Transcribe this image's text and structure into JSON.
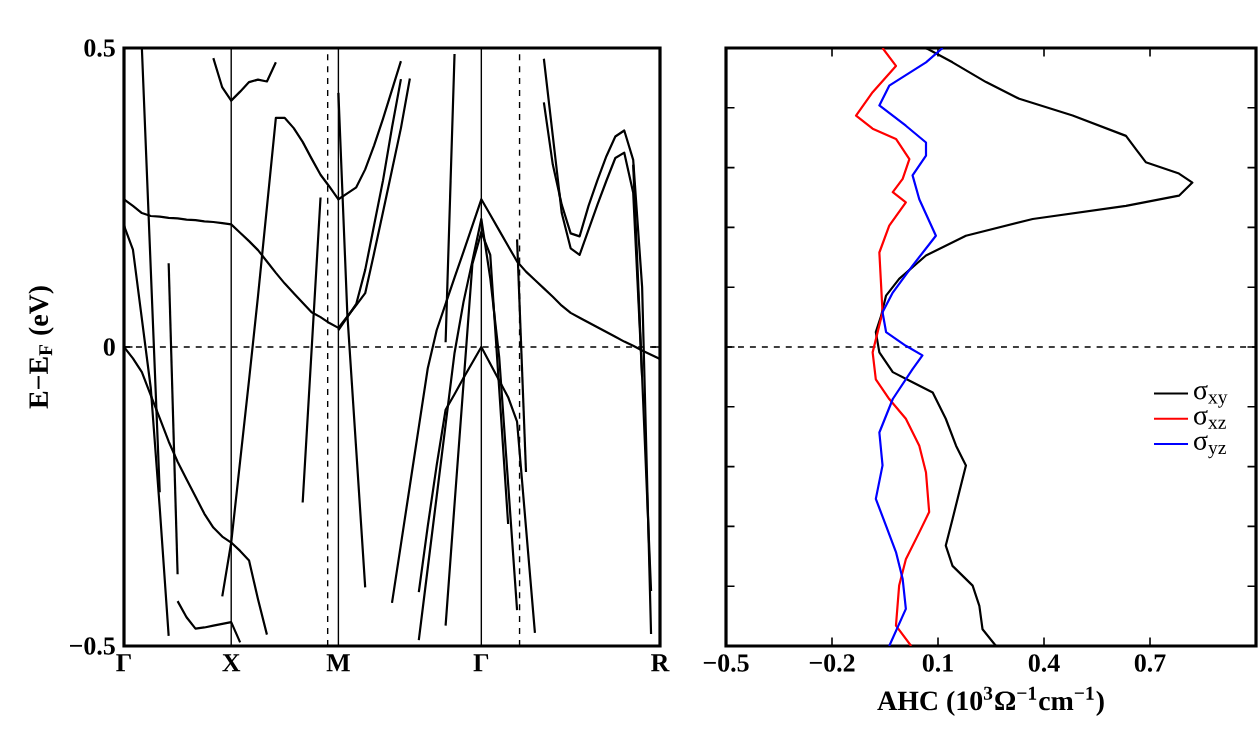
{
  "chart_data": [
    {
      "type": "line",
      "ylabel": "E−E$_{F}$ (eV)",
      "ylim": [
        -0.5,
        0.5
      ],
      "categories": [
        "Γ",
        null,
        null,
        null,
        null,
        null,
        null,
        null,
        null,
        null,
        null,
        null,
        "X",
        null,
        null,
        null,
        null,
        null,
        null,
        null,
        null,
        null,
        null,
        null,
        "M",
        null,
        null,
        null,
        null,
        null,
        null,
        null,
        null,
        null,
        null,
        null,
        null,
        null,
        null,
        null,
        "Γ",
        null,
        null,
        null,
        null,
        null,
        null,
        null,
        null,
        null,
        null,
        null,
        null,
        null,
        null,
        null,
        null,
        null,
        null,
        null,
        "R"
      ],
      "yticks": [
        0.5,
        0,
        {
          "value": -0.5,
          "label": "−0.5"
        }
      ],
      "grid": "x",
      "ref_lines": [
        {
          "axis": "y",
          "value": 0,
          "line_style": "dashed"
        }
      ],
      "series": [
        {
          "color": "#000000",
          "values": [
            0.247,
            0.236,
            0.224,
            0.219,
            0.218,
            0.216,
            0.215,
            0.213,
            0.212,
            0.21,
            0.209,
            0.207,
            0.205,
            0.191,
            0.177,
            0.162,
            0.143,
            0.124,
            0.106,
            0.09,
            0.074,
            0.058,
            0.05,
            0.04,
            0.032,
            0.051,
            0.07,
            0.09,
            0.157,
            0.226,
            0.296,
            0.366,
            0.449,
            null,
            null,
            null,
            null,
            null,
            null,
            null,
            null,
            null,
            null,
            null,
            null,
            null,
            null,
            null,
            null,
            null,
            null,
            null,
            null,
            null,
            null,
            null,
            null,
            null,
            null,
            null,
            null
          ]
        },
        {
          "color": "#000000",
          "values": [
            null,
            null,
            null,
            null,
            null,
            null,
            null,
            null,
            null,
            null,
            null,
            null,
            null,
            null,
            null,
            null,
            null,
            null,
            null,
            null,
            null,
            null,
            null,
            null,
            0.028,
            0.05,
            0.072,
            0.129,
            0.204,
            0.279,
            0.367,
            0.448,
            null,
            null,
            null,
            null,
            null,
            null,
            null,
            null,
            null,
            null,
            null,
            null,
            null,
            null,
            null,
            null,
            null,
            null,
            null,
            null,
            null,
            null,
            null,
            null,
            null,
            null,
            null,
            null,
            null
          ]
        },
        {
          "color": "#000000",
          "values": [
            null,
            null,
            null,
            null,
            null,
            null,
            null,
            null,
            null,
            null,
            null,
            -0.417,
            -0.327,
            -0.191,
            -0.055,
            0.085,
            0.234,
            0.383,
            0.383,
            0.366,
            0.343,
            0.315,
            0.288,
            0.268,
            0.247,
            0.257,
            0.267,
            0.297,
            0.337,
            0.382,
            0.43,
            0.478,
            null,
            null,
            null,
            null,
            null,
            null,
            null,
            null,
            null,
            null,
            null,
            null,
            null,
            null,
            null,
            null,
            null,
            null,
            null,
            null,
            null,
            null,
            null,
            null,
            null,
            null,
            null,
            null,
            null
          ]
        },
        {
          "color": "#000000",
          "values": [
            null,
            null,
            null,
            null,
            null,
            null,
            null,
            null,
            null,
            null,
            0.483,
            0.434,
            0.412,
            0.427,
            0.443,
            0.447,
            0.444,
            0.476,
            null,
            null,
            null,
            null,
            null,
            null,
            null,
            null,
            null,
            null,
            null,
            null,
            null,
            null,
            null,
            null,
            null,
            null,
            null,
            null,
            null,
            null,
            null,
            null,
            null,
            null,
            null,
            null,
            null,
            null,
            null,
            null,
            null,
            null,
            null,
            null,
            null,
            null,
            null,
            null,
            null,
            null,
            null
          ]
        },
        {
          "color": "#000000",
          "values": [
            null,
            null,
            null,
            null,
            null,
            0.14,
            -0.38,
            null,
            null,
            null,
            null,
            null,
            null,
            null,
            null,
            null,
            null,
            null,
            null,
            null,
            null,
            null,
            null,
            null,
            null,
            null,
            null,
            null,
            null,
            null,
            null,
            null,
            null,
            null,
            null,
            null,
            null,
            null,
            null,
            null,
            null,
            null,
            null,
            null,
            null,
            null,
            null,
            null,
            null,
            null,
            null,
            null,
            null,
            null,
            null,
            null,
            null,
            null,
            null,
            null,
            null
          ]
        },
        {
          "color": "#000000",
          "values": [
            null,
            null,
            0.5,
            0.129,
            -0.243,
            null,
            null,
            null,
            null,
            null,
            null,
            null,
            null,
            null,
            null,
            null,
            null,
            null,
            null,
            null,
            null,
            null,
            null,
            null,
            null,
            null,
            null,
            null,
            null,
            null,
            null,
            null,
            null,
            null,
            null,
            null,
            null,
            null,
            null,
            null,
            null,
            null,
            null,
            null,
            null,
            null,
            null,
            null,
            null,
            null,
            null,
            null,
            null,
            null,
            null,
            null,
            null,
            null,
            null,
            null,
            null
          ]
        },
        {
          "color": "#000000",
          "values": [
            0.203,
            0.163,
            0.047,
            -0.069,
            -0.269,
            -0.483,
            null,
            null,
            null,
            null,
            null,
            null,
            null,
            null,
            null,
            null,
            null,
            null,
            null,
            null,
            null,
            null,
            null,
            null,
            null,
            null,
            null,
            null,
            null,
            null,
            null,
            null,
            null,
            null,
            null,
            null,
            null,
            null,
            null,
            null,
            null,
            null,
            null,
            null,
            null,
            null,
            null,
            null,
            null,
            null,
            null,
            null,
            null,
            null,
            null,
            null,
            null,
            null,
            null,
            null,
            null
          ]
        },
        {
          "color": "#000000",
          "values": [
            0,
            -0.019,
            -0.042,
            -0.081,
            -0.119,
            -0.158,
            -0.192,
            -0.221,
            -0.25,
            -0.279,
            -0.302,
            -0.317,
            -0.327,
            -0.341,
            -0.357,
            -0.422,
            -0.481,
            null,
            null,
            null,
            null,
            null,
            null,
            null,
            null,
            null,
            null,
            null,
            null,
            null,
            null,
            null,
            null,
            null,
            null,
            null,
            null,
            null,
            null,
            null,
            null,
            null,
            null,
            null,
            null,
            null,
            null,
            null,
            null,
            null,
            null,
            null,
            null,
            null,
            null,
            null,
            null,
            null,
            null,
            null,
            null
          ]
        },
        {
          "color": "#000000",
          "values": [
            null,
            null,
            null,
            null,
            null,
            null,
            -0.425,
            -0.452,
            -0.471,
            -0.469,
            -0.466,
            -0.463,
            -0.46,
            -0.494,
            null,
            null,
            null,
            null,
            null,
            null,
            null,
            null,
            null,
            null,
            null,
            null,
            null,
            null,
            null,
            null,
            null,
            null,
            null,
            null,
            null,
            null,
            null,
            null,
            null,
            null,
            null,
            null,
            null,
            null,
            null,
            null,
            null,
            null,
            null,
            null,
            null,
            null,
            null,
            null,
            null,
            null,
            null,
            null,
            null,
            null,
            null
          ]
        },
        {
          "color": "#000000",
          "values": [
            null,
            null,
            null,
            null,
            null,
            null,
            null,
            null,
            null,
            null,
            null,
            null,
            null,
            null,
            null,
            null,
            null,
            null,
            null,
            null,
            -0.26,
            -0.005,
            0.25,
            null,
            null,
            null,
            null,
            null,
            null,
            null,
            null,
            null,
            null,
            null,
            null,
            null,
            null,
            null,
            null,
            null,
            null,
            null,
            null,
            null,
            null,
            null,
            null,
            null,
            null,
            null,
            null,
            null,
            null,
            null,
            null,
            null,
            null,
            null,
            null,
            null,
            null
          ]
        },
        {
          "color": "#000000",
          "values": [
            null,
            null,
            null,
            null,
            null,
            null,
            null,
            null,
            null,
            null,
            null,
            null,
            null,
            null,
            null,
            null,
            null,
            null,
            null,
            null,
            null,
            null,
            null,
            null,
            0.425,
            0.055,
            -0.173,
            -0.402,
            null,
            null,
            null,
            null,
            null,
            null,
            null,
            null,
            null,
            null,
            null,
            null,
            null,
            null,
            null,
            null,
            null,
            null,
            null,
            null,
            null,
            null,
            null,
            null,
            null,
            null,
            null,
            null,
            null,
            null,
            null,
            null,
            null
          ]
        },
        {
          "color": "#000000",
          "values": [
            null,
            null,
            null,
            null,
            null,
            null,
            null,
            null,
            null,
            null,
            null,
            null,
            null,
            null,
            null,
            null,
            null,
            null,
            null,
            null,
            null,
            null,
            null,
            null,
            null,
            null,
            null,
            null,
            null,
            null,
            -0.428,
            -0.33,
            -0.232,
            -0.134,
            -0.036,
            0.028,
            0.072,
            0.116,
            0.159,
            0.203,
            0.247,
            0.221,
            0.195,
            0.169,
            0.143,
            0.126,
            0.112,
            0.098,
            0.084,
            0.069,
            0.057,
            0.049,
            0.041,
            0.033,
            0.025,
            0.017,
            0.009,
            0.002,
            -0.006,
            -0.013,
            -0.02
          ]
        },
        {
          "color": "#000000",
          "values": [
            null,
            null,
            null,
            null,
            null,
            null,
            null,
            null,
            null,
            null,
            null,
            null,
            null,
            null,
            null,
            null,
            null,
            null,
            null,
            null,
            null,
            null,
            null,
            null,
            null,
            null,
            null,
            null,
            null,
            null,
            null,
            null,
            null,
            -0.49,
            -0.37,
            -0.25,
            -0.13,
            -0.01,
            0.075,
            0.144,
            0.214,
            0.115,
            -0.017,
            -0.229,
            -0.44,
            null,
            null,
            null,
            null,
            null,
            null,
            null,
            null,
            null,
            null,
            null,
            null,
            null,
            null,
            null,
            null
          ]
        },
        {
          "color": "#000000",
          "values": [
            null,
            null,
            null,
            null,
            null,
            null,
            null,
            null,
            null,
            null,
            null,
            null,
            null,
            null,
            null,
            null,
            null,
            null,
            null,
            null,
            null,
            null,
            null,
            null,
            null,
            null,
            null,
            null,
            null,
            null,
            null,
            null,
            null,
            null,
            null,
            null,
            -0.466,
            -0.263,
            -0.062,
            0.139,
            0.192,
            0.154,
            -0.07,
            -0.296,
            null,
            null,
            null,
            null,
            null,
            null,
            null,
            null,
            null,
            null,
            null,
            null,
            null,
            null,
            null,
            null,
            null
          ]
        },
        {
          "color": "#000000",
          "values": [
            null,
            null,
            null,
            null,
            null,
            null,
            null,
            null,
            null,
            null,
            null,
            null,
            null,
            null,
            null,
            null,
            null,
            null,
            null,
            null,
            null,
            null,
            null,
            null,
            null,
            null,
            null,
            null,
            null,
            null,
            null,
            null,
            null,
            -0.41,
            -0.3,
            -0.198,
            -0.105,
            -0.079,
            -0.052,
            -0.026,
            0,
            -0.028,
            -0.056,
            -0.084,
            -0.125,
            -0.302,
            -0.478,
            null,
            null,
            null,
            null,
            null,
            null,
            null,
            null,
            null,
            null,
            null,
            null,
            null,
            null
          ]
        },
        {
          "color": "#000000",
          "values": [
            null,
            null,
            null,
            null,
            null,
            null,
            null,
            null,
            null,
            null,
            null,
            null,
            null,
            null,
            null,
            null,
            null,
            null,
            null,
            null,
            null,
            null,
            null,
            null,
            null,
            null,
            null,
            null,
            null,
            null,
            null,
            null,
            null,
            null,
            null,
            null,
            0.008,
            0.49,
            null,
            null,
            null,
            null,
            null,
            null,
            null,
            null,
            null,
            null,
            null,
            null,
            null,
            null,
            null,
            null,
            null,
            null,
            null,
            null,
            null,
            null,
            null
          ]
        },
        {
          "color": "#000000",
          "values": [
            null,
            null,
            null,
            null,
            null,
            null,
            null,
            null,
            null,
            null,
            null,
            null,
            null,
            null,
            null,
            null,
            null,
            null,
            null,
            null,
            null,
            null,
            null,
            null,
            null,
            null,
            null,
            null,
            null,
            null,
            null,
            null,
            null,
            null,
            null,
            null,
            null,
            null,
            null,
            null,
            null,
            null,
            null,
            null,
            0.18,
            -0.209,
            null,
            null,
            null,
            null,
            null,
            null,
            null,
            null,
            null,
            null,
            null,
            null,
            null,
            null,
            null
          ]
        },
        {
          "color": "#000000",
          "values": [
            null,
            null,
            null,
            null,
            null,
            null,
            null,
            null,
            null,
            null,
            null,
            null,
            null,
            null,
            null,
            null,
            null,
            null,
            null,
            null,
            null,
            null,
            null,
            null,
            null,
            null,
            null,
            null,
            null,
            null,
            null,
            null,
            null,
            null,
            null,
            null,
            null,
            null,
            null,
            null,
            null,
            null,
            null,
            null,
            null,
            null,
            null,
            0.409,
            0.305,
            0.238,
            0.19,
            0.185,
            0.236,
            0.279,
            0.319,
            0.352,
            0.362,
            0.313,
            0.1,
            -0.48,
            null
          ]
        },
        {
          "color": "#000000",
          "values": [
            null,
            null,
            null,
            null,
            null,
            null,
            null,
            null,
            null,
            null,
            null,
            null,
            null,
            null,
            null,
            null,
            null,
            null,
            null,
            null,
            null,
            null,
            null,
            null,
            null,
            null,
            null,
            null,
            null,
            null,
            null,
            null,
            null,
            null,
            null,
            null,
            null,
            null,
            null,
            null,
            null,
            null,
            null,
            null,
            null,
            null,
            null,
            0.482,
            0.353,
            0.224,
            0.165,
            0.154,
            0.196,
            0.238,
            0.278,
            0.316,
            0.325,
            0.258,
            -0.05,
            null,
            null
          ]
        },
        {
          "color": "#000000",
          "values": [
            null,
            null,
            null,
            null,
            null,
            null,
            null,
            null,
            null,
            null,
            null,
            null,
            null,
            null,
            null,
            null,
            null,
            null,
            null,
            null,
            null,
            null,
            null,
            null,
            null,
            null,
            null,
            null,
            null,
            null,
            null,
            null,
            null,
            null,
            null,
            null,
            null,
            null,
            null,
            null,
            null,
            null,
            null,
            null,
            null,
            null,
            null,
            null,
            null,
            null,
            null,
            null,
            null,
            null,
            null,
            null,
            null,
            0.305,
            -0.05,
            -0.408,
            null
          ]
        }
      ]
    },
    {
      "type": "line",
      "xlabel": "AHC (10$^{3}$Ω$^{−1}$cm$^{−1}$)",
      "xlim": [
        -0.5,
        1.0
      ],
      "ylim": [
        -0.5,
        0.5
      ],
      "tick_labels": "x",
      "legend": "right",
      "xticks": [
        {
          "value": -0.5,
          "label": "−0.5"
        },
        {
          "value": -0.2,
          "label": "−0.2"
        },
        0.1,
        0.4,
        0.7,
        {
          "value": 1.0,
          "label": null
        }
      ],
      "ref_lines": [
        {
          "axis": "y",
          "value": 0,
          "line_style": "dashed"
        }
      ],
      "series": [
        {
          "name": "σ$_{xy}$",
          "color": "#000000",
          "x": [
            0.066,
            0.141,
            0.236,
            0.33,
            0.481,
            0.632,
            0.66,
            0.688,
            0.782,
            0.82,
            0.782,
            0.632,
            0.368,
            0.179,
            0.066,
            -0.01,
            -0.047,
            -0.061,
            -0.076,
            -0.066,
            -0.028,
            0.028,
            0.085,
            0.122,
            0.151,
            0.179,
            0.16,
            0.141,
            0.122,
            0.141,
            0.198,
            0.217,
            0.226,
            0.264
          ],
          "values": [
            0.5,
            0.476,
            0.443,
            0.415,
            0.387,
            0.353,
            0.331,
            0.309,
            0.29,
            0.275,
            0.253,
            0.236,
            0.214,
            0.186,
            0.153,
            0.114,
            0.086,
            0.052,
            0.025,
            -0.009,
            -0.042,
            -0.059,
            -0.076,
            -0.12,
            -0.165,
            -0.198,
            -0.243,
            -0.288,
            -0.332,
            -0.366,
            -0.399,
            -0.433,
            -0.472,
            -0.5
          ]
        },
        {
          "name": "σ$_{xz}$",
          "color": "#ff0000",
          "x": [
            -0.057,
            -0.019,
            -0.085,
            -0.132,
            -0.085,
            -0.019,
            0.019,
            0.0,
            -0.028,
            0.009,
            -0.038,
            -0.066,
            -0.062,
            -0.057,
            -0.085,
            -0.076,
            -0.038,
            0.009,
            0.047,
            0.066,
            0.075,
            0.047,
            0.009,
            -0.01,
            -0.019,
            0.024
          ],
          "values": [
            0.5,
            0.47,
            0.426,
            0.387,
            0.365,
            0.348,
            0.314,
            0.281,
            0.259,
            0.242,
            0.203,
            0.158,
            0.114,
            0.058,
            -0.009,
            -0.054,
            -0.087,
            -0.12,
            -0.165,
            -0.21,
            -0.276,
            -0.31,
            -0.355,
            -0.399,
            -0.466,
            -0.5
          ]
        },
        {
          "name": "σ$_{yz}$",
          "color": "#0000ff",
          "x": [
            0.113,
            0.066,
            -0.038,
            -0.066,
            0.009,
            0.066,
            0.066,
            0.028,
            0.047,
            0.094,
            0.028,
            -0.028,
            -0.057,
            -0.047,
            0.009,
            0.056,
            0.028,
            -0.028,
            -0.066,
            -0.057,
            -0.076,
            -0.047,
            -0.019,
            0.0,
            0.009,
            -0.038
          ],
          "values": [
            0.5,
            0.476,
            0.437,
            0.404,
            0.37,
            0.342,
            0.32,
            0.287,
            0.247,
            0.186,
            0.136,
            0.091,
            0.058,
            0.025,
            0.002,
            -0.014,
            -0.037,
            -0.087,
            -0.143,
            -0.198,
            -0.254,
            -0.299,
            -0.343,
            -0.388,
            -0.438,
            -0.5
          ]
        }
      ]
    }
  ]
}
